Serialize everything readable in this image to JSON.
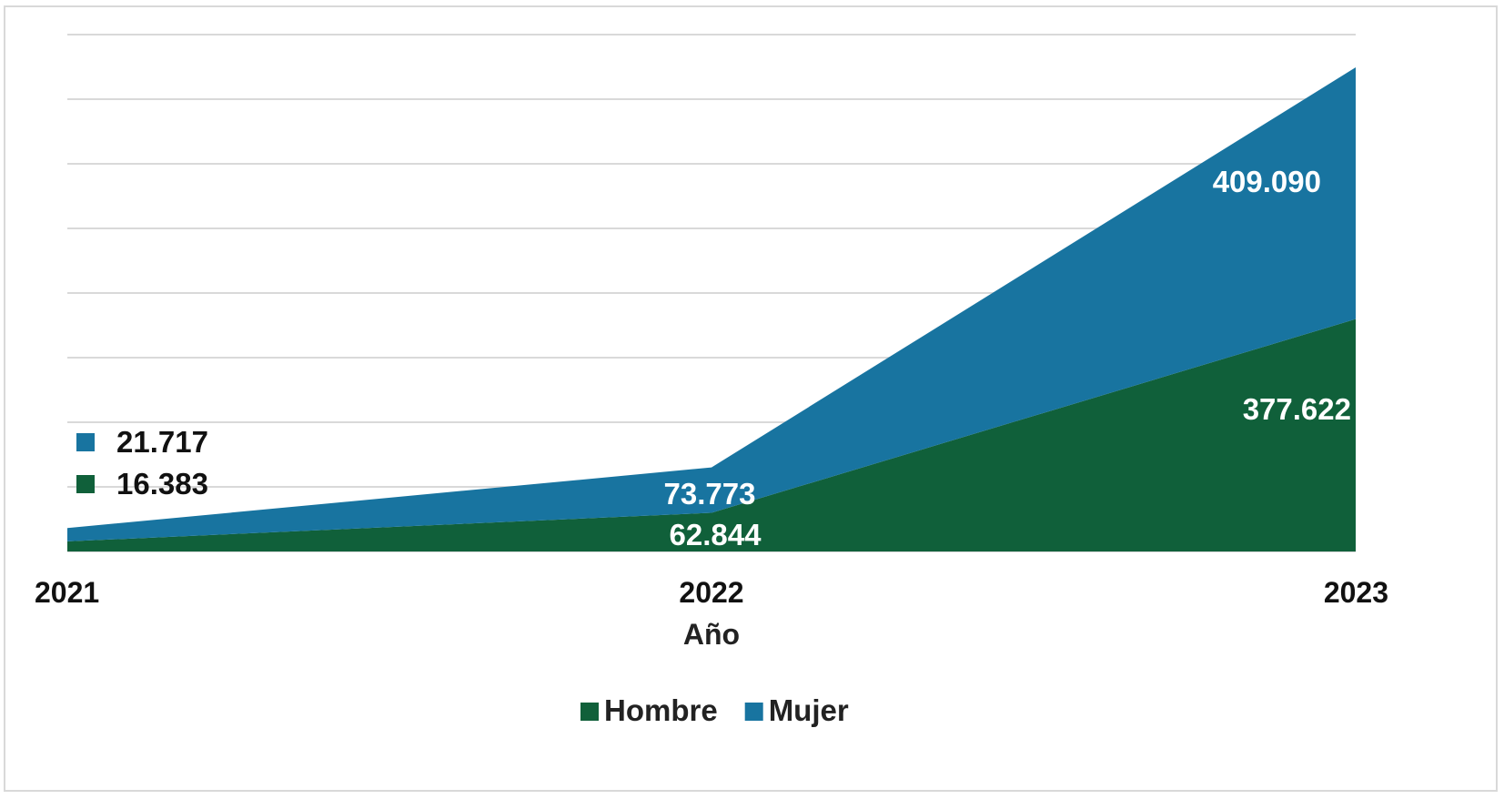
{
  "chart_data": {
    "type": "area",
    "stacked": true,
    "categories": [
      "2021",
      "2022",
      "2023"
    ],
    "xlabel": "Año",
    "ylabel": "",
    "ylim": [
      0,
      840000
    ],
    "grid": true,
    "legend_position": "bottom",
    "series": [
      {
        "name": "Hombre",
        "color": "#10603A",
        "values": [
          16383,
          62844,
          377622
        ],
        "labels": [
          "16.383",
          "62.844",
          "377.622"
        ]
      },
      {
        "name": "Mujer",
        "color": "#1874A0",
        "values": [
          21717,
          73773,
          409090
        ],
        "labels": [
          "21.717",
          "73.773",
          "409.090"
        ]
      }
    ]
  }
}
